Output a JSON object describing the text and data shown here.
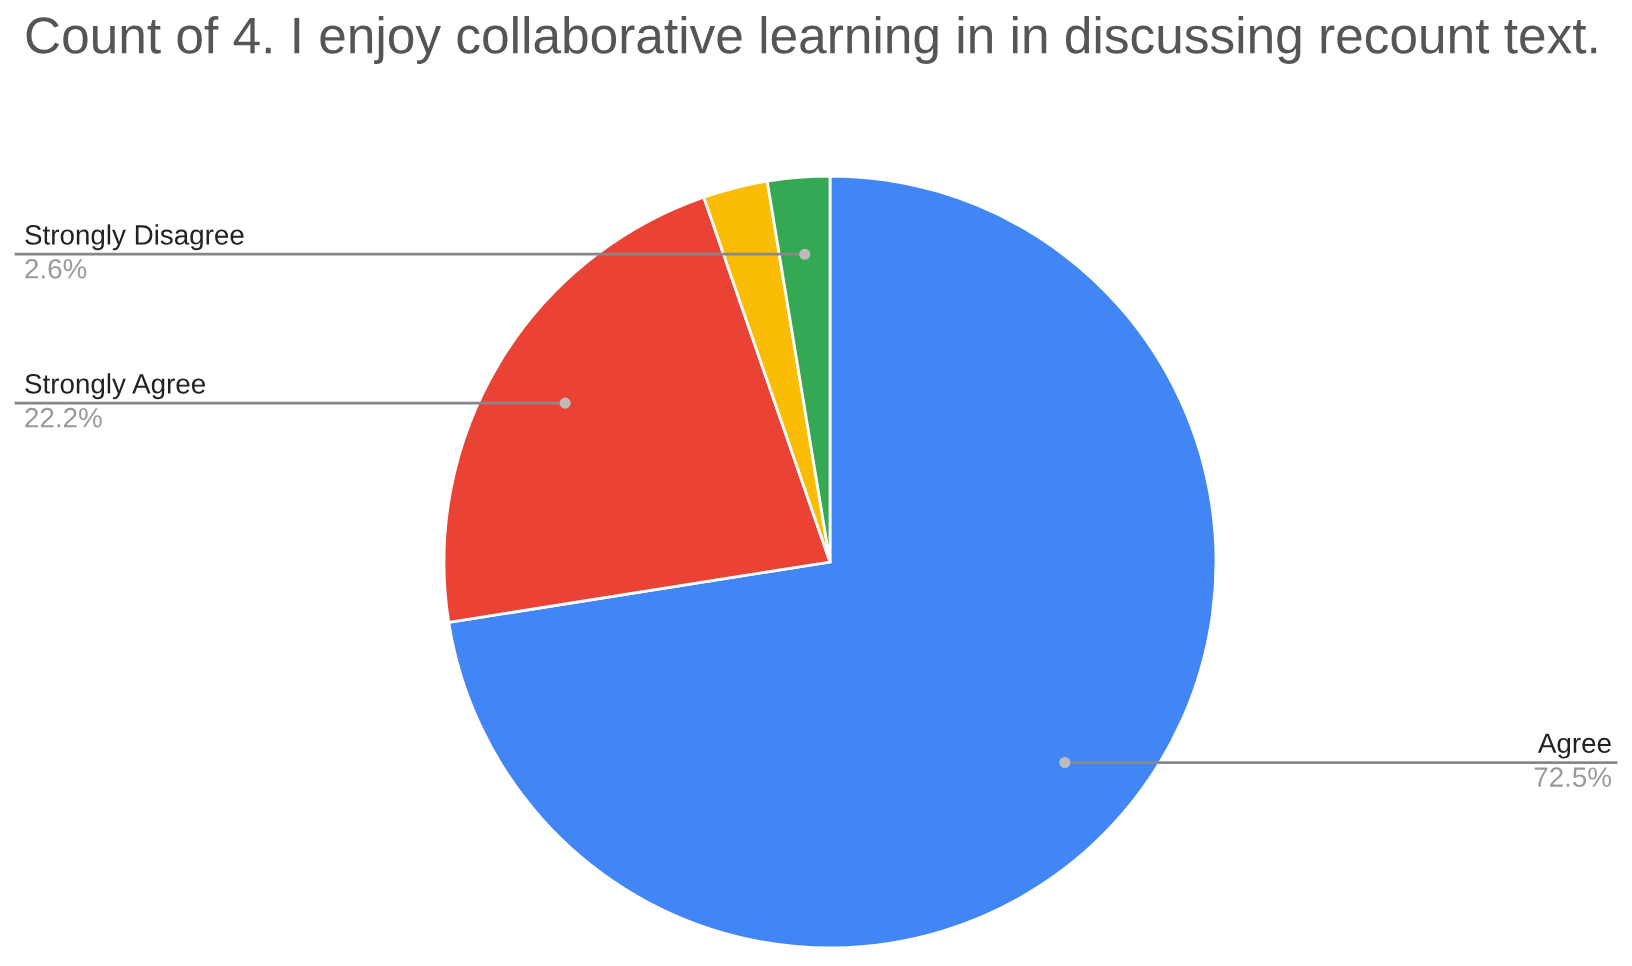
{
  "chart_data": {
    "type": "pie",
    "title": "Count of 4. I enjoy collaborative learning in in discussing recount text.",
    "categories": [
      "Agree",
      "Strongly Agree",
      null,
      "Strongly Disagree"
    ],
    "values": [
      72.5,
      22.2,
      2.7,
      2.6
    ],
    "colors": [
      "#4285f4",
      "#ea4335",
      "#fbbc04",
      "#34a853"
    ],
    "value_labels": [
      "72.5%",
      "22.2%",
      null,
      "2.6%"
    ]
  }
}
